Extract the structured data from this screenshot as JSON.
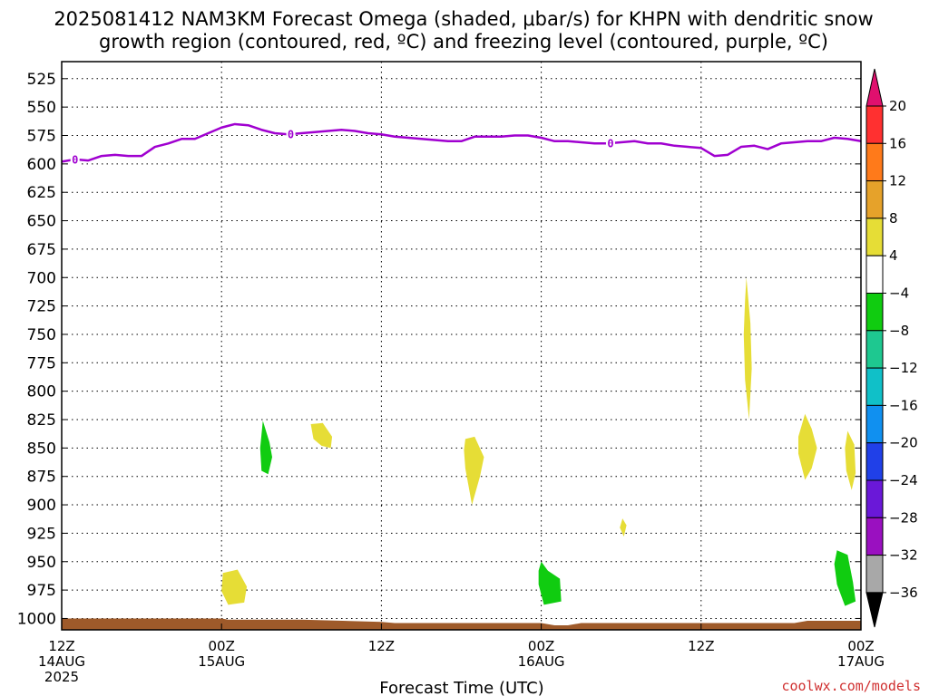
{
  "chart_data": {
    "type": "heatmap",
    "title_line1": "2025081412 NAM3KM Forecast Omega (shaded, μbar/s) for KHPN with dendritic snow",
    "title_line2": "growth region (contoured, red, ºC) and freezing level (contoured, purple, ºC)",
    "xlabel": "Forecast Time (UTC)",
    "ylabel": "",
    "credit": "coolwx.com/models",
    "x_unit": "forecast hour",
    "xlim": [
      0,
      60
    ],
    "ylim": [
      1010,
      510
    ],
    "y_ticks": [
      525,
      550,
      575,
      600,
      625,
      650,
      675,
      700,
      725,
      750,
      775,
      800,
      825,
      850,
      875,
      900,
      925,
      950,
      975,
      1000
    ],
    "x_ticks": [
      {
        "hour": 0,
        "lines": [
          "12Z",
          "14AUG",
          "2025"
        ]
      },
      {
        "hour": 12,
        "lines": [
          "00Z",
          "15AUG"
        ]
      },
      {
        "hour": 24,
        "lines": [
          "12Z"
        ]
      },
      {
        "hour": 36,
        "lines": [
          "00Z",
          "16AUG"
        ]
      },
      {
        "hour": 48,
        "lines": [
          "12Z"
        ]
      },
      {
        "hour": 60,
        "lines": [
          "00Z",
          "17AUG"
        ]
      }
    ],
    "grid": true,
    "colorbar": {
      "label_values": [
        "20",
        "16",
        "12",
        "8",
        "4",
        "-4",
        "-8",
        "-12",
        "-16",
        "-20",
        "-24",
        "-28",
        "-32",
        "-36"
      ],
      "bins": [
        {
          "min": 20,
          "color": "#e0106e"
        },
        {
          "min": 16,
          "max": 20,
          "color": "#ff3030"
        },
        {
          "min": 12,
          "max": 16,
          "color": "#ff7a1a"
        },
        {
          "min": 8,
          "max": 12,
          "color": "#e6a22a"
        },
        {
          "min": 4,
          "max": 8,
          "color": "#e6dd36"
        },
        {
          "min": -4,
          "max": 4,
          "color": "#ffffff"
        },
        {
          "min": -8,
          "max": -4,
          "color": "#10cc10"
        },
        {
          "min": -12,
          "max": -8,
          "color": "#1ec890"
        },
        {
          "min": -16,
          "max": -12,
          "color": "#10c0c8"
        },
        {
          "min": -20,
          "max": -16,
          "color": "#1090f0"
        },
        {
          "min": -24,
          "max": -20,
          "color": "#2040e8"
        },
        {
          "min": -28,
          "max": -24,
          "color": "#6a18d8"
        },
        {
          "min": -32,
          "max": -28,
          "color": "#9a10c0"
        },
        {
          "min": -36,
          "max": -32,
          "color": "#a8a8a8"
        },
        {
          "max": -36,
          "color": "#000000"
        }
      ]
    },
    "freezing_level": {
      "color": "#a000d0",
      "label": "0",
      "label_hours": [
        1,
        17.2,
        41.2
      ],
      "points": [
        [
          0,
          598
        ],
        [
          1,
          596
        ],
        [
          2,
          597
        ],
        [
          3,
          593
        ],
        [
          4,
          592
        ],
        [
          5,
          593
        ],
        [
          6,
          593
        ],
        [
          7,
          585
        ],
        [
          8,
          582
        ],
        [
          9,
          578
        ],
        [
          10,
          578
        ],
        [
          11,
          573
        ],
        [
          12,
          568
        ],
        [
          13,
          565
        ],
        [
          14,
          566
        ],
        [
          15,
          570
        ],
        [
          16,
          573
        ],
        [
          17,
          574
        ],
        [
          18,
          573
        ],
        [
          19,
          572
        ],
        [
          20,
          571
        ],
        [
          21,
          570
        ],
        [
          22,
          571
        ],
        [
          23,
          573
        ],
        [
          24,
          574
        ],
        [
          25,
          576
        ],
        [
          26,
          577
        ],
        [
          27,
          578
        ],
        [
          28,
          579
        ],
        [
          29,
          580
        ],
        [
          30,
          580
        ],
        [
          31,
          576
        ],
        [
          32,
          576
        ],
        [
          33,
          576
        ],
        [
          34,
          575
        ],
        [
          35,
          575
        ],
        [
          36,
          577
        ],
        [
          37,
          580
        ],
        [
          38,
          580
        ],
        [
          39,
          581
        ],
        [
          40,
          582
        ],
        [
          41,
          582
        ],
        [
          42,
          581
        ],
        [
          43,
          580
        ],
        [
          44,
          582
        ],
        [
          45,
          582
        ],
        [
          46,
          584
        ],
        [
          47,
          585
        ],
        [
          48,
          586
        ],
        [
          49,
          593
        ],
        [
          50,
          592
        ],
        [
          51,
          585
        ],
        [
          52,
          584
        ],
        [
          53,
          587
        ],
        [
          54,
          582
        ],
        [
          55,
          581
        ],
        [
          56,
          580
        ],
        [
          57,
          580
        ],
        [
          58,
          577
        ],
        [
          59,
          578
        ],
        [
          60,
          580
        ]
      ]
    },
    "omega_regions": [
      {
        "color": "#10cc10",
        "points": [
          [
            15.1,
            826
          ],
          [
            15.6,
            845
          ],
          [
            15.8,
            858
          ],
          [
            15.5,
            873
          ],
          [
            15.0,
            870
          ],
          [
            14.9,
            850
          ]
        ]
      },
      {
        "color": "#e6dd36",
        "points": [
          [
            18.7,
            829
          ],
          [
            19.6,
            828
          ],
          [
            20.3,
            840
          ],
          [
            20.2,
            850
          ],
          [
            19.5,
            848
          ],
          [
            18.9,
            842
          ]
        ]
      },
      {
        "color": "#e6dd36",
        "points": [
          [
            12.1,
            960
          ],
          [
            13.2,
            957
          ],
          [
            13.9,
            972
          ],
          [
            13.7,
            986
          ],
          [
            12.5,
            988
          ],
          [
            12.0,
            976
          ]
        ]
      },
      {
        "color": "#e6dd36",
        "points": [
          [
            30.3,
            842
          ],
          [
            31.0,
            840
          ],
          [
            31.7,
            858
          ],
          [
            31.4,
            875
          ],
          [
            30.8,
            900
          ],
          [
            30.3,
            868
          ],
          [
            30.2,
            852
          ]
        ]
      },
      {
        "color": "#e6dd36",
        "points": [
          [
            42.1,
            912
          ],
          [
            42.4,
            918
          ],
          [
            42.2,
            928
          ],
          [
            41.9,
            920
          ]
        ]
      },
      {
        "color": "#10cc10",
        "points": [
          [
            36.0,
            950
          ],
          [
            36.5,
            958
          ],
          [
            37.4,
            965
          ],
          [
            37.5,
            985
          ],
          [
            36.2,
            988
          ],
          [
            35.8,
            970
          ],
          [
            35.8,
            958
          ]
        ]
      },
      {
        "color": "#e6dd36",
        "points": [
          [
            51.4,
            700
          ],
          [
            51.7,
            740
          ],
          [
            51.8,
            780
          ],
          [
            51.6,
            825
          ],
          [
            51.3,
            790
          ],
          [
            51.2,
            750
          ],
          [
            51.3,
            720
          ]
        ]
      },
      {
        "color": "#e6dd36",
        "points": [
          [
            55.8,
            820
          ],
          [
            56.3,
            833
          ],
          [
            56.7,
            850
          ],
          [
            56.3,
            868
          ],
          [
            55.8,
            878
          ],
          [
            55.3,
            855
          ],
          [
            55.3,
            840
          ]
        ]
      },
      {
        "color": "#e6dd36",
        "points": [
          [
            59.0,
            835
          ],
          [
            59.5,
            847
          ],
          [
            59.6,
            872
          ],
          [
            59.3,
            887
          ],
          [
            58.9,
            870
          ],
          [
            58.8,
            850
          ]
        ]
      },
      {
        "color": "#10cc10",
        "points": [
          [
            58.2,
            940
          ],
          [
            59.0,
            944
          ],
          [
            59.4,
            968
          ],
          [
            59.6,
            985
          ],
          [
            58.8,
            989
          ],
          [
            58.2,
            970
          ],
          [
            58.0,
            952
          ]
        ]
      }
    ],
    "terrain": {
      "color": "#9e5a2a",
      "surface_points": [
        [
          0,
          1000
        ],
        [
          12,
          1000
        ],
        [
          12.5,
          1001
        ],
        [
          18,
          1001
        ],
        [
          24,
          1003
        ],
        [
          25,
          1004
        ],
        [
          36,
          1004
        ],
        [
          37,
          1006
        ],
        [
          38,
          1006
        ],
        [
          39,
          1004
        ],
        [
          48,
          1004
        ],
        [
          55,
          1004
        ],
        [
          56,
          1002
        ],
        [
          60,
          1002
        ]
      ]
    }
  }
}
